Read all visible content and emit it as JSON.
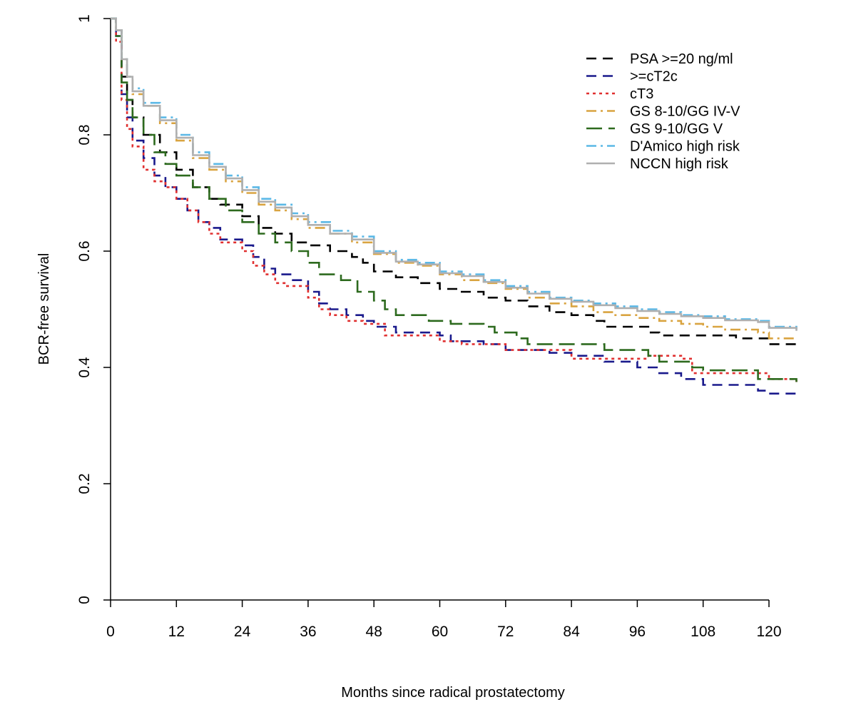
{
  "chart_data": {
    "type": "line",
    "title": "",
    "xlabel": "Months since radical prostatectomy",
    "ylabel": "BCR-free survival",
    "xlim": [
      0,
      125
    ],
    "ylim": [
      0,
      1
    ],
    "x_ticks": [
      "0",
      "12",
      "24",
      "36",
      "48",
      "60",
      "72",
      "84",
      "96",
      "108",
      "120"
    ],
    "y_ticks": [
      "0",
      "0.2",
      "0.4",
      "0.6",
      "0.8",
      "1"
    ],
    "grid": false,
    "legend_position": "top-right",
    "step": true,
    "series": [
      {
        "name": "PSA >=20 ng/ml",
        "color": "#000000",
        "dash": "dashed",
        "points": [
          [
            0,
            1
          ],
          [
            1,
            0.98
          ],
          [
            2,
            0.9
          ],
          [
            3,
            0.86
          ],
          [
            4,
            0.83
          ],
          [
            6,
            0.8
          ],
          [
            9,
            0.77
          ],
          [
            12,
            0.74
          ],
          [
            15,
            0.71
          ],
          [
            18,
            0.69
          ],
          [
            20,
            0.68
          ],
          [
            24,
            0.66
          ],
          [
            27,
            0.64
          ],
          [
            30,
            0.63
          ],
          [
            33,
            0.615
          ],
          [
            36,
            0.61
          ],
          [
            40,
            0.6
          ],
          [
            44,
            0.59
          ],
          [
            46,
            0.58
          ],
          [
            48,
            0.565
          ],
          [
            52,
            0.555
          ],
          [
            56,
            0.545
          ],
          [
            60,
            0.535
          ],
          [
            64,
            0.53
          ],
          [
            68,
            0.52
          ],
          [
            72,
            0.515
          ],
          [
            76,
            0.505
          ],
          [
            80,
            0.495
          ],
          [
            84,
            0.49
          ],
          [
            88,
            0.48
          ],
          [
            90,
            0.47
          ],
          [
            96,
            0.47
          ],
          [
            98,
            0.46
          ],
          [
            100,
            0.455
          ],
          [
            108,
            0.455
          ],
          [
            114,
            0.45
          ],
          [
            120,
            0.44
          ],
          [
            125,
            0.44
          ]
        ]
      },
      {
        "name": ">=cT2c",
        "color": "#1a1a8c",
        "dash": "dashed",
        "points": [
          [
            0,
            1
          ],
          [
            1,
            0.97
          ],
          [
            2,
            0.87
          ],
          [
            3,
            0.83
          ],
          [
            4,
            0.79
          ],
          [
            6,
            0.76
          ],
          [
            8,
            0.73
          ],
          [
            10,
            0.71
          ],
          [
            12,
            0.69
          ],
          [
            14,
            0.67
          ],
          [
            16,
            0.65
          ],
          [
            18,
            0.64
          ],
          [
            20,
            0.62
          ],
          [
            24,
            0.61
          ],
          [
            26,
            0.59
          ],
          [
            28,
            0.57
          ],
          [
            30,
            0.56
          ],
          [
            33,
            0.55
          ],
          [
            36,
            0.53
          ],
          [
            38,
            0.51
          ],
          [
            40,
            0.5
          ],
          [
            43,
            0.49
          ],
          [
            46,
            0.48
          ],
          [
            48,
            0.47
          ],
          [
            52,
            0.46
          ],
          [
            60,
            0.455
          ],
          [
            62,
            0.445
          ],
          [
            68,
            0.44
          ],
          [
            72,
            0.43
          ],
          [
            80,
            0.425
          ],
          [
            84,
            0.42
          ],
          [
            90,
            0.41
          ],
          [
            96,
            0.4
          ],
          [
            100,
            0.39
          ],
          [
            104,
            0.38
          ],
          [
            108,
            0.37
          ],
          [
            114,
            0.37
          ],
          [
            118,
            0.36
          ],
          [
            120,
            0.355
          ],
          [
            125,
            0.355
          ]
        ]
      },
      {
        "name": "cT3",
        "color": "#e03030",
        "dash": "dotted",
        "points": [
          [
            0,
            1
          ],
          [
            1,
            0.96
          ],
          [
            2,
            0.86
          ],
          [
            3,
            0.81
          ],
          [
            4,
            0.78
          ],
          [
            6,
            0.74
          ],
          [
            8,
            0.72
          ],
          [
            10,
            0.71
          ],
          [
            12,
            0.69
          ],
          [
            14,
            0.67
          ],
          [
            16,
            0.65
          ],
          [
            18,
            0.63
          ],
          [
            20,
            0.615
          ],
          [
            24,
            0.6
          ],
          [
            26,
            0.575
          ],
          [
            28,
            0.56
          ],
          [
            30,
            0.545
          ],
          [
            32,
            0.54
          ],
          [
            36,
            0.52
          ],
          [
            38,
            0.5
          ],
          [
            40,
            0.49
          ],
          [
            43,
            0.48
          ],
          [
            46,
            0.475
          ],
          [
            50,
            0.455
          ],
          [
            56,
            0.455
          ],
          [
            60,
            0.445
          ],
          [
            64,
            0.44
          ],
          [
            72,
            0.43
          ],
          [
            76,
            0.43
          ],
          [
            84,
            0.415
          ],
          [
            96,
            0.415
          ],
          [
            98,
            0.42
          ],
          [
            104,
            0.415
          ],
          [
            106,
            0.39
          ],
          [
            114,
            0.39
          ],
          [
            120,
            0.38
          ],
          [
            125,
            0.375
          ]
        ]
      },
      {
        "name": "GS 8-10/GG IV-V",
        "color": "#d9a441",
        "dash": "dashdot",
        "points": [
          [
            0,
            1
          ],
          [
            1,
            0.98
          ],
          [
            2,
            0.93
          ],
          [
            3,
            0.9
          ],
          [
            4,
            0.87
          ],
          [
            6,
            0.85
          ],
          [
            9,
            0.82
          ],
          [
            12,
            0.79
          ],
          [
            15,
            0.76
          ],
          [
            18,
            0.74
          ],
          [
            21,
            0.72
          ],
          [
            24,
            0.7
          ],
          [
            27,
            0.68
          ],
          [
            30,
            0.67
          ],
          [
            33,
            0.655
          ],
          [
            36,
            0.64
          ],
          [
            40,
            0.63
          ],
          [
            44,
            0.615
          ],
          [
            48,
            0.595
          ],
          [
            52,
            0.58
          ],
          [
            56,
            0.575
          ],
          [
            60,
            0.56
          ],
          [
            64,
            0.55
          ],
          [
            68,
            0.545
          ],
          [
            72,
            0.535
          ],
          [
            76,
            0.52
          ],
          [
            80,
            0.51
          ],
          [
            84,
            0.505
          ],
          [
            88,
            0.495
          ],
          [
            92,
            0.49
          ],
          [
            96,
            0.485
          ],
          [
            100,
            0.48
          ],
          [
            104,
            0.475
          ],
          [
            108,
            0.47
          ],
          [
            112,
            0.465
          ],
          [
            118,
            0.46
          ],
          [
            120,
            0.45
          ],
          [
            125,
            0.448
          ]
        ]
      },
      {
        "name": "GS 9-10/GG V",
        "color": "#2d6a1e",
        "dash": "longdash",
        "points": [
          [
            0,
            1
          ],
          [
            1,
            0.97
          ],
          [
            2,
            0.89
          ],
          [
            3,
            0.86
          ],
          [
            4,
            0.83
          ],
          [
            6,
            0.8
          ],
          [
            8,
            0.77
          ],
          [
            10,
            0.75
          ],
          [
            12,
            0.73
          ],
          [
            15,
            0.71
          ],
          [
            18,
            0.69
          ],
          [
            21,
            0.67
          ],
          [
            24,
            0.65
          ],
          [
            27,
            0.63
          ],
          [
            30,
            0.615
          ],
          [
            33,
            0.6
          ],
          [
            36,
            0.58
          ],
          [
            38,
            0.56
          ],
          [
            42,
            0.55
          ],
          [
            45,
            0.53
          ],
          [
            48,
            0.515
          ],
          [
            50,
            0.5
          ],
          [
            52,
            0.49
          ],
          [
            56,
            0.49
          ],
          [
            58,
            0.48
          ],
          [
            62,
            0.475
          ],
          [
            68,
            0.47
          ],
          [
            70,
            0.46
          ],
          [
            74,
            0.45
          ],
          [
            76,
            0.44
          ],
          [
            84,
            0.44
          ],
          [
            90,
            0.43
          ],
          [
            98,
            0.42
          ],
          [
            100,
            0.41
          ],
          [
            106,
            0.4
          ],
          [
            108,
            0.395
          ],
          [
            118,
            0.38
          ],
          [
            125,
            0.375
          ]
        ]
      },
      {
        "name": "D'Amico high risk",
        "color": "#5bb8e6",
        "dash": "dashdot",
        "points": [
          [
            0,
            1
          ],
          [
            1,
            0.98
          ],
          [
            2,
            0.93
          ],
          [
            3,
            0.9
          ],
          [
            4,
            0.88
          ],
          [
            6,
            0.855
          ],
          [
            9,
            0.83
          ],
          [
            12,
            0.8
          ],
          [
            15,
            0.77
          ],
          [
            18,
            0.75
          ],
          [
            21,
            0.73
          ],
          [
            24,
            0.71
          ],
          [
            27,
            0.69
          ],
          [
            30,
            0.68
          ],
          [
            33,
            0.665
          ],
          [
            36,
            0.65
          ],
          [
            40,
            0.635
          ],
          [
            44,
            0.625
          ],
          [
            48,
            0.6
          ],
          [
            52,
            0.585
          ],
          [
            56,
            0.58
          ],
          [
            60,
            0.565
          ],
          [
            64,
            0.56
          ],
          [
            68,
            0.55
          ],
          [
            72,
            0.54
          ],
          [
            76,
            0.53
          ],
          [
            80,
            0.52
          ],
          [
            84,
            0.515
          ],
          [
            88,
            0.51
          ],
          [
            92,
            0.505
          ],
          [
            96,
            0.5
          ],
          [
            100,
            0.495
          ],
          [
            104,
            0.49
          ],
          [
            108,
            0.488
          ],
          [
            112,
            0.483
          ],
          [
            118,
            0.48
          ],
          [
            120,
            0.47
          ],
          [
            125,
            0.465
          ]
        ]
      },
      {
        "name": "NCCN high risk",
        "color": "#b0b0b0",
        "dash": "solid",
        "points": [
          [
            0,
            1
          ],
          [
            1,
            0.98
          ],
          [
            2,
            0.93
          ],
          [
            3,
            0.9
          ],
          [
            4,
            0.875
          ],
          [
            6,
            0.85
          ],
          [
            9,
            0.825
          ],
          [
            12,
            0.795
          ],
          [
            15,
            0.765
          ],
          [
            18,
            0.745
          ],
          [
            21,
            0.725
          ],
          [
            24,
            0.705
          ],
          [
            27,
            0.685
          ],
          [
            30,
            0.675
          ],
          [
            33,
            0.66
          ],
          [
            36,
            0.645
          ],
          [
            40,
            0.63
          ],
          [
            44,
            0.62
          ],
          [
            48,
            0.597
          ],
          [
            52,
            0.582
          ],
          [
            56,
            0.577
          ],
          [
            60,
            0.562
          ],
          [
            64,
            0.557
          ],
          [
            68,
            0.547
          ],
          [
            72,
            0.537
          ],
          [
            76,
            0.527
          ],
          [
            80,
            0.518
          ],
          [
            84,
            0.513
          ],
          [
            88,
            0.507
          ],
          [
            92,
            0.502
          ],
          [
            96,
            0.497
          ],
          [
            100,
            0.492
          ],
          [
            104,
            0.488
          ],
          [
            108,
            0.485
          ],
          [
            112,
            0.481
          ],
          [
            118,
            0.478
          ],
          [
            120,
            0.468
          ],
          [
            125,
            0.463
          ]
        ]
      }
    ]
  }
}
